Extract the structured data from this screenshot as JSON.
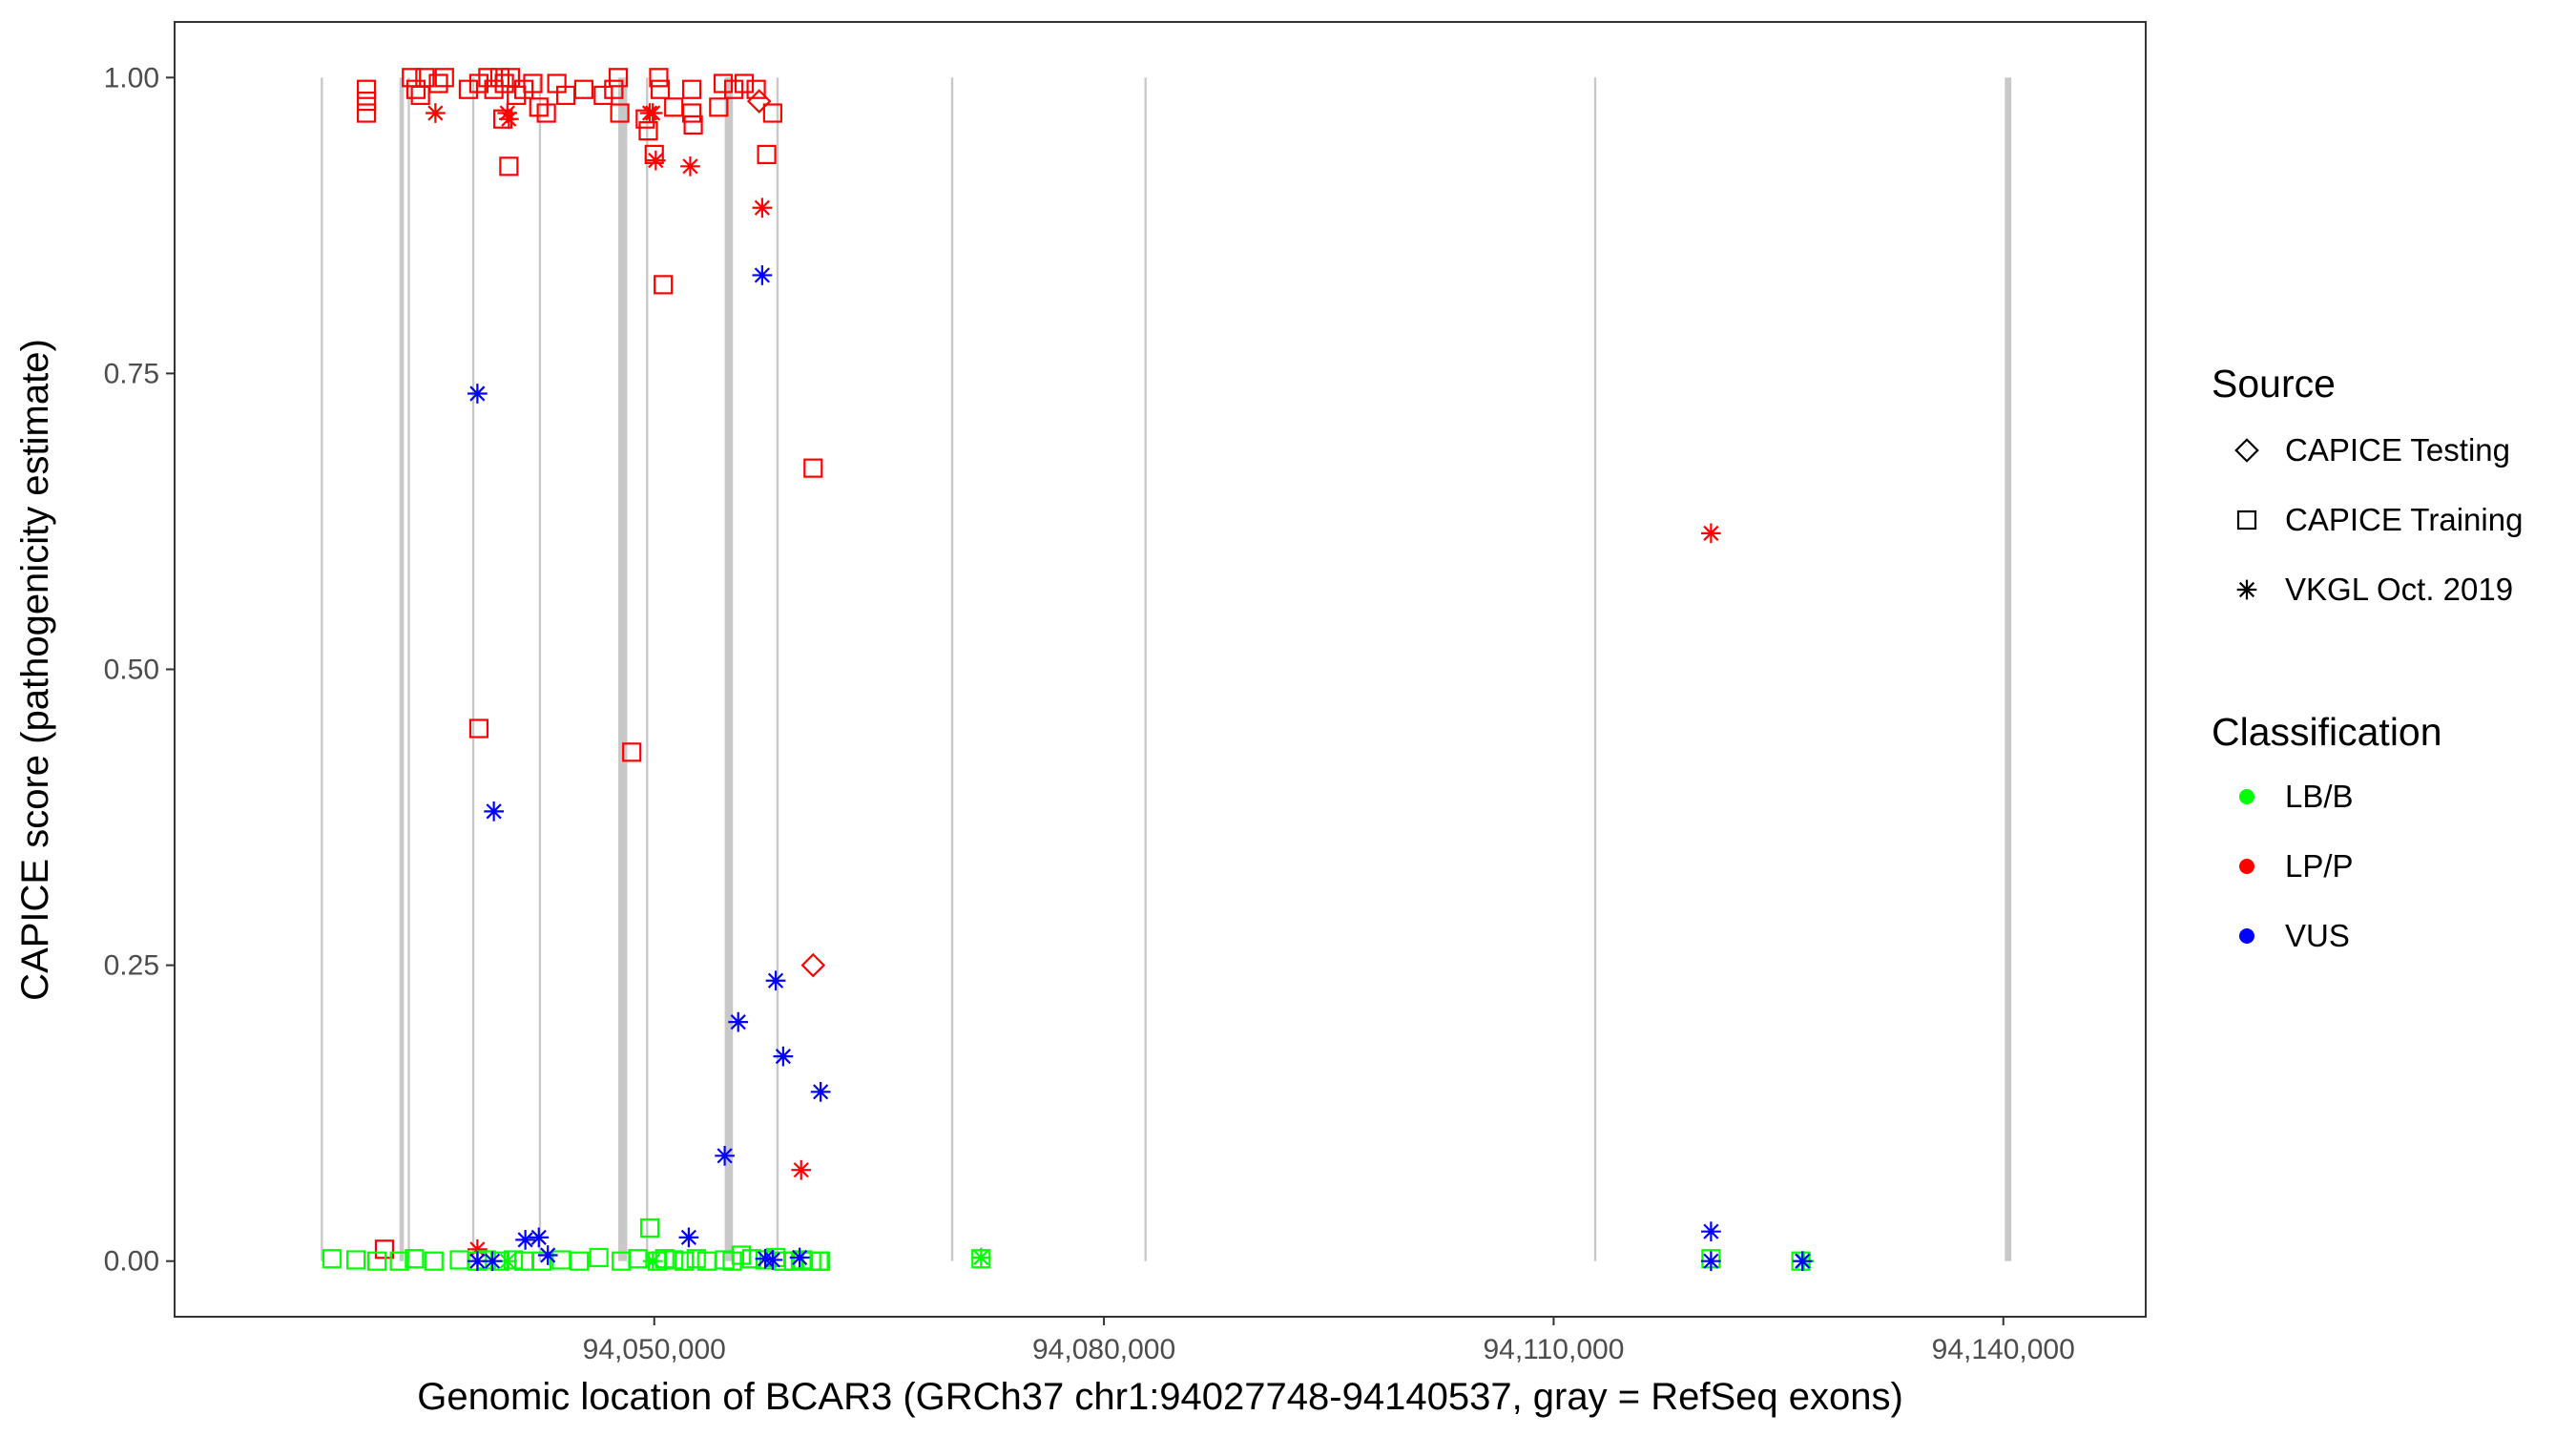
{
  "chart_data": {
    "type": "scatter",
    "xlabel": "Genomic location of BCAR3 (GRCh37 chr1:94027748-94140537, gray = RefSeq exons)",
    "ylabel": "CAPICE score (pathogenicity estimate)",
    "xlim": [
      94018000,
      94149500
    ],
    "ylim": [
      -0.047,
      1.047
    ],
    "x_ticks": [
      94050000,
      94080000,
      94110000,
      94140000
    ],
    "x_tick_labels": [
      "94,050,000",
      "94,080,000",
      "94,110,000",
      "94,140,000"
    ],
    "y_ticks": [
      0,
      0.25,
      0.5,
      0.75,
      1
    ],
    "y_tick_labels": [
      "0.00",
      "0.25",
      "0.50",
      "0.75",
      "1.00"
    ],
    "grid": false,
    "colors": {
      "LB/B": "#00ff00",
      "LP/P": "#ff0000",
      "VUS": "#0000ff",
      "exon": "#c8c8c8"
    },
    "exons": [
      {
        "start": 94027748,
        "end": 94027900
      },
      {
        "start": 94033000,
        "end": 94033300
      },
      {
        "start": 94033550,
        "end": 94033700
      },
      {
        "start": 94037850,
        "end": 94038000
      },
      {
        "start": 94042300,
        "end": 94042450
      },
      {
        "start": 94047600,
        "end": 94048200
      },
      {
        "start": 94049450,
        "end": 94049600
      },
      {
        "start": 94054700,
        "end": 94055250
      },
      {
        "start": 94058150,
        "end": 94058300
      },
      {
        "start": 94069800,
        "end": 94069950
      },
      {
        "start": 94082700,
        "end": 94082850
      },
      {
        "start": 94112700,
        "end": 94112850
      },
      {
        "start": 94140100,
        "end": 94140537
      }
    ],
    "legends": [
      {
        "title": "Source",
        "position": "right",
        "entries": [
          {
            "label": "CAPICE Testing",
            "shape": "diamond"
          },
          {
            "label": "CAPICE Training",
            "shape": "square"
          },
          {
            "label": "VKGL Oct. 2019",
            "shape": "star"
          }
        ]
      },
      {
        "title": "Classification",
        "position": "right",
        "entries": [
          {
            "label": "LB/B",
            "color": "#00ff00"
          },
          {
            "label": "LP/P",
            "color": "#ff0000"
          },
          {
            "label": "VUS",
            "color": "#0000ff"
          }
        ]
      }
    ],
    "series": [
      {
        "source": "CAPICE Training",
        "classification": "LP/P",
        "points": [
          [
            94030800,
            0.99
          ],
          [
            94030800,
            0.98
          ],
          [
            94030800,
            0.97
          ],
          [
            94033800,
            1.0
          ],
          [
            94034100,
            0.99
          ],
          [
            94034400,
            0.985
          ],
          [
            94034700,
            1.0
          ],
          [
            94035600,
            0.995
          ],
          [
            94036000,
            1.0
          ],
          [
            94037600,
            0.99
          ],
          [
            94038300,
            0.995
          ],
          [
            94038900,
            1.0
          ],
          [
            94039300,
            0.99
          ],
          [
            94039700,
            1.0
          ],
          [
            94040000,
            0.995
          ],
          [
            94040400,
            1.0
          ],
          [
            94040800,
            0.985
          ],
          [
            94039900,
            0.965
          ],
          [
            94041300,
            0.99
          ],
          [
            94041900,
            0.995
          ],
          [
            94042300,
            0.975
          ],
          [
            94042800,
            0.97
          ],
          [
            94043500,
            0.995
          ],
          [
            94044100,
            0.985
          ],
          [
            94045300,
            0.99
          ],
          [
            94046600,
            0.985
          ],
          [
            94047300,
            0.99
          ],
          [
            94047600,
            1.0
          ],
          [
            94047700,
            0.97
          ],
          [
            94049400,
            0.965
          ],
          [
            94049600,
            0.955
          ],
          [
            94050300,
            1.0
          ],
          [
            94050400,
            0.99
          ],
          [
            94051300,
            0.975
          ],
          [
            94052500,
            0.99
          ],
          [
            94052500,
            0.97
          ],
          [
            94052600,
            0.96
          ],
          [
            94054300,
            0.975
          ],
          [
            94054600,
            0.995
          ],
          [
            94055300,
            0.99
          ],
          [
            94056000,
            0.995
          ],
          [
            94056800,
            0.99
          ],
          [
            94057500,
            0.935
          ],
          [
            94057900,
            0.97
          ],
          [
            94040300,
            0.925
          ],
          [
            94050000,
            0.935
          ],
          [
            94050600,
            0.825
          ],
          [
            94038300,
            0.45
          ],
          [
            94048500,
            0.43
          ],
          [
            94060600,
            0.67
          ],
          [
            94032000,
            0.01
          ]
        ]
      },
      {
        "source": "CAPICE Testing",
        "classification": "LP/P",
        "points": [
          [
            94057000,
            0.98
          ],
          [
            94060600,
            0.25
          ]
        ]
      },
      {
        "source": "VKGL Oct. 2019",
        "classification": "LP/P",
        "points": [
          [
            94035400,
            0.97
          ],
          [
            94040200,
            0.97
          ],
          [
            94040300,
            0.965
          ],
          [
            94049700,
            0.97
          ],
          [
            94049900,
            0.97
          ],
          [
            94050100,
            0.93
          ],
          [
            94052400,
            0.925
          ],
          [
            94057200,
            0.89
          ],
          [
            94059800,
            0.077
          ],
          [
            94038200,
            0.01
          ],
          [
            94120500,
            0.615
          ]
        ]
      },
      {
        "source": "CAPICE Training",
        "classification": "LB/B",
        "points": [
          [
            94028500,
            0.002
          ],
          [
            94030100,
            0.001
          ],
          [
            94031500,
            0.0
          ],
          [
            94033000,
            0.0
          ],
          [
            94034000,
            0.002
          ],
          [
            94035300,
            0.0
          ],
          [
            94037000,
            0.001
          ],
          [
            94038200,
            0.0
          ],
          [
            94038800,
            0.001
          ],
          [
            94039700,
            0.0
          ],
          [
            94040600,
            0.001
          ],
          [
            94041300,
            0.0
          ],
          [
            94042500,
            0.0
          ],
          [
            94043800,
            0.001
          ],
          [
            94045000,
            0.0
          ],
          [
            94046300,
            0.003
          ],
          [
            94047800,
            0.0
          ],
          [
            94048900,
            0.002
          ],
          [
            94049700,
            0.028
          ],
          [
            94050200,
            0.0
          ],
          [
            94050700,
            0.002
          ],
          [
            94051300,
            0.001
          ],
          [
            94052000,
            0.0
          ],
          [
            94052800,
            0.002
          ],
          [
            94053500,
            0.0
          ],
          [
            94054700,
            0.001
          ],
          [
            94055200,
            0.0
          ],
          [
            94055800,
            0.005
          ],
          [
            94056500,
            0.002
          ],
          [
            94057400,
            0.001
          ],
          [
            94058100,
            0.003
          ],
          [
            94058600,
            0.0
          ],
          [
            94059300,
            0.0
          ],
          [
            94059900,
            0.001
          ],
          [
            94060500,
            0.0
          ],
          [
            94061000,
            0.0
          ],
          [
            94061100,
            0.0
          ],
          [
            94071800,
            0.002
          ],
          [
            94120500,
            0.002
          ],
          [
            94126500,
            0.0
          ]
        ]
      },
      {
        "source": "VKGL Oct. 2019",
        "classification": "LB/B",
        "points": [
          [
            94040200,
            0.0
          ],
          [
            94049900,
            0.0
          ],
          [
            94071800,
            0.003
          ],
          [
            94126700,
            0.0
          ]
        ]
      },
      {
        "source": "VKGL Oct. 2019",
        "classification": "VUS",
        "points": [
          [
            94038200,
            0.733
          ],
          [
            94039300,
            0.38
          ],
          [
            94057200,
            0.833
          ],
          [
            94058100,
            0.237
          ],
          [
            94055600,
            0.202
          ],
          [
            94058600,
            0.173
          ],
          [
            94061100,
            0.143
          ],
          [
            94054700,
            0.089
          ],
          [
            94041400,
            0.018
          ],
          [
            94042300,
            0.02
          ],
          [
            94052300,
            0.02
          ],
          [
            94042900,
            0.005
          ],
          [
            94038200,
            0.0
          ],
          [
            94039200,
            0.0
          ],
          [
            94057400,
            0.002
          ],
          [
            94057900,
            0.001
          ],
          [
            94059700,
            0.003
          ],
          [
            94120500,
            0.025
          ],
          [
            94120500,
            0.0
          ],
          [
            94126600,
            0.0
          ]
        ]
      }
    ]
  }
}
